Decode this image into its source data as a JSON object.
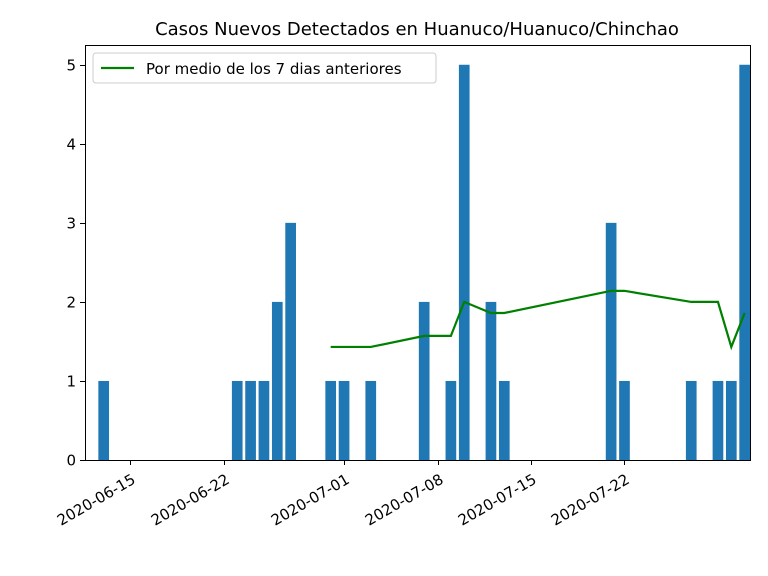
{
  "chart_data": {
    "type": "bar",
    "title": "Casos Nuevos Detectados en Huanuco/Huanuco/Chinchao",
    "xlabel": "",
    "ylabel": "",
    "x_range": [
      "2020-06-12",
      "2020-07-31"
    ],
    "ylim": [
      0,
      5.25
    ],
    "y_ticks": [
      0,
      1,
      2,
      3,
      4,
      5
    ],
    "x_ticks": [
      "2020-06-15",
      "2020-06-22",
      "2020-07-01",
      "2020-07-08",
      "2020-07-15",
      "2020-07-22"
    ],
    "grid": false,
    "legend_position": "top-left",
    "bar_color": "#1f77b4",
    "line_color": "#008000",
    "bars": [
      {
        "date": "2020-06-13",
        "value": 1
      },
      {
        "date": "2020-06-23",
        "value": 1
      },
      {
        "date": "2020-06-24",
        "value": 1
      },
      {
        "date": "2020-06-25",
        "value": 1
      },
      {
        "date": "2020-06-26",
        "value": 2
      },
      {
        "date": "2020-06-27",
        "value": 3
      },
      {
        "date": "2020-06-30",
        "value": 1
      },
      {
        "date": "2020-07-01",
        "value": 1
      },
      {
        "date": "2020-07-03",
        "value": 1
      },
      {
        "date": "2020-07-07",
        "value": 2
      },
      {
        "date": "2020-07-09",
        "value": 1
      },
      {
        "date": "2020-07-10",
        "value": 5
      },
      {
        "date": "2020-07-12",
        "value": 2
      },
      {
        "date": "2020-07-13",
        "value": 1
      },
      {
        "date": "2020-07-21",
        "value": 3
      },
      {
        "date": "2020-07-22",
        "value": 1
      },
      {
        "date": "2020-07-27",
        "value": 1
      },
      {
        "date": "2020-07-29",
        "value": 1
      },
      {
        "date": "2020-07-30",
        "value": 1
      },
      {
        "date": "2020-07-31",
        "value": 5
      }
    ],
    "series": [
      {
        "name": "Por medio de los 7 dias anteriores",
        "type": "line",
        "points": [
          {
            "date": "2020-06-30",
            "value": 1.43
          },
          {
            "date": "2020-07-03",
            "value": 1.43
          },
          {
            "date": "2020-07-07",
            "value": 1.57
          },
          {
            "date": "2020-07-09",
            "value": 1.57
          },
          {
            "date": "2020-07-10",
            "value": 2.0
          },
          {
            "date": "2020-07-12",
            "value": 1.86
          },
          {
            "date": "2020-07-13",
            "value": 1.86
          },
          {
            "date": "2020-07-21",
            "value": 2.14
          },
          {
            "date": "2020-07-22",
            "value": 2.14
          },
          {
            "date": "2020-07-27",
            "value": 2.0
          },
          {
            "date": "2020-07-29",
            "value": 2.0
          },
          {
            "date": "2020-07-30",
            "value": 1.43
          },
          {
            "date": "2020-07-31",
            "value": 1.86
          }
        ]
      }
    ]
  }
}
